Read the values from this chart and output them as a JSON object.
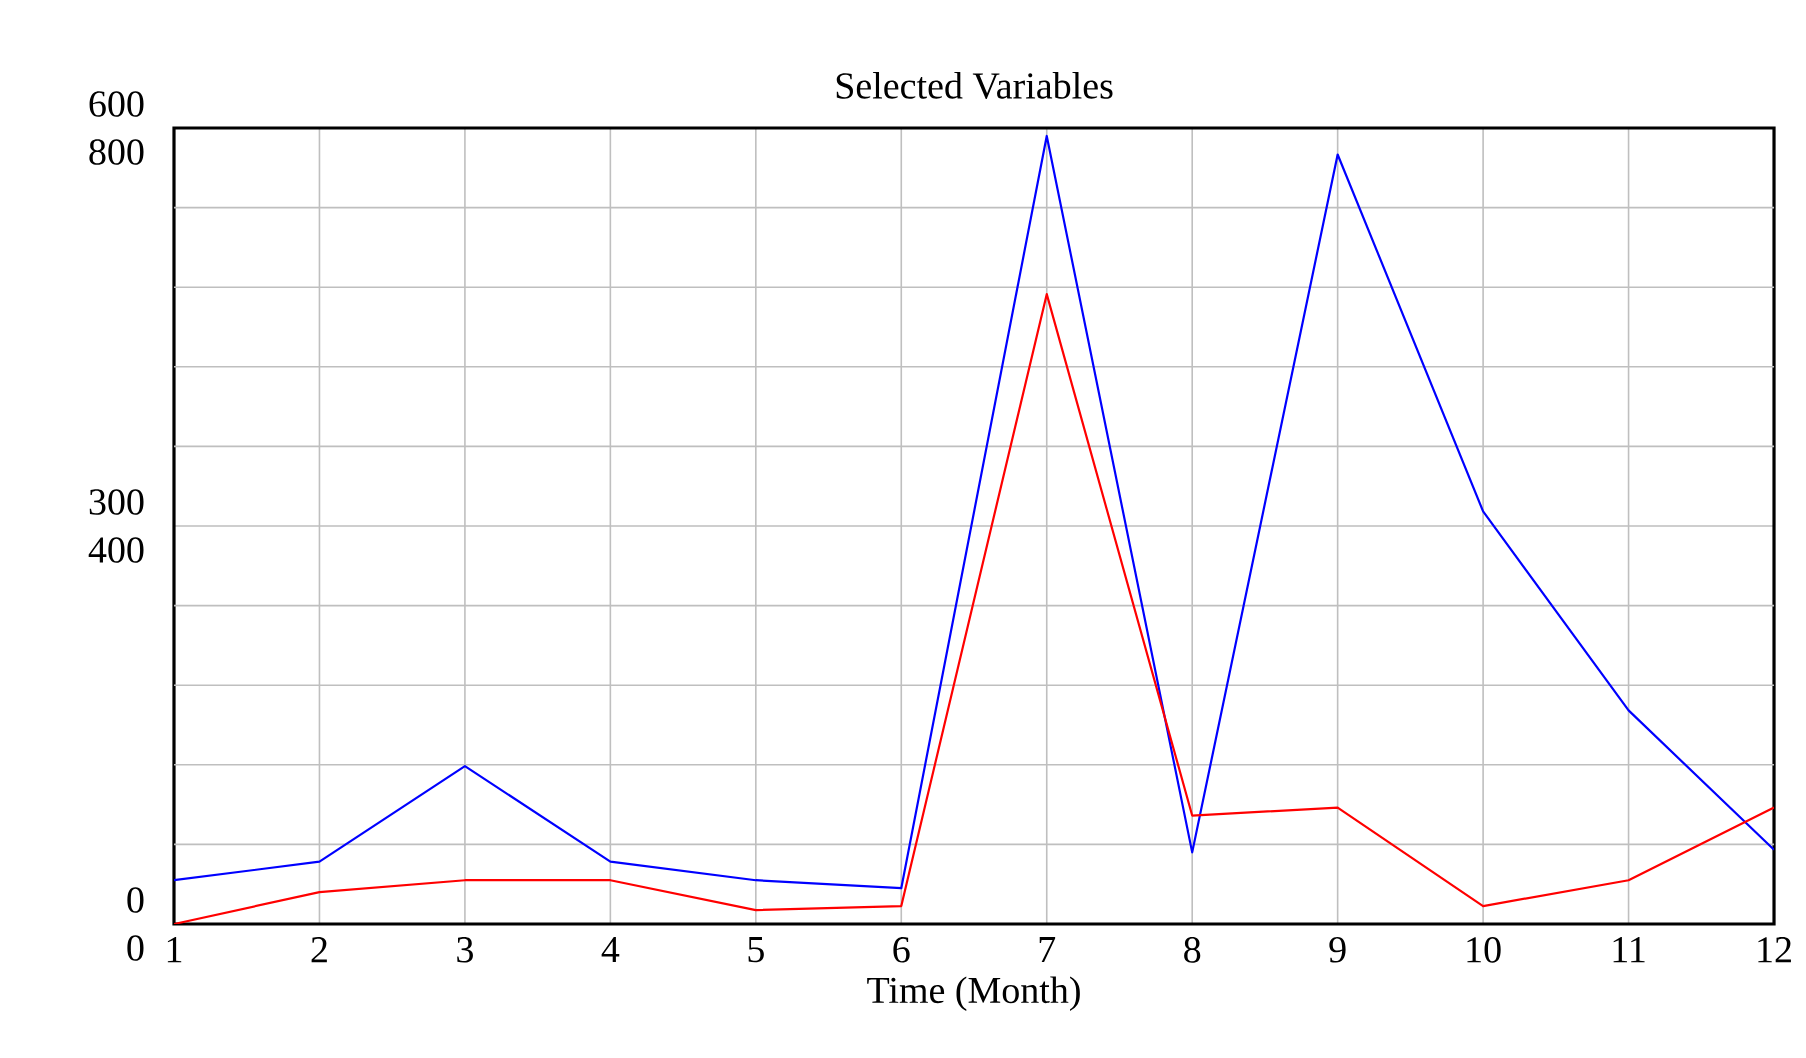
{
  "chart_data": {
    "type": "line",
    "title": "Selected Variables",
    "xlabel": "Time (Month)",
    "x": [
      1,
      2,
      3,
      4,
      5,
      6,
      7,
      8,
      9,
      10,
      11,
      12
    ],
    "xlim": [
      1,
      12
    ],
    "xticks": [
      1,
      2,
      3,
      4,
      5,
      6,
      7,
      8,
      9,
      10,
      11,
      12
    ],
    "ylim": [
      0,
      600
    ],
    "yticks": [
      0,
      {
        "value": 60,
        "label": null
      },
      {
        "value": 120,
        "label": null
      },
      {
        "value": 180,
        "label": null
      },
      {
        "value": 240,
        "label": null
      },
      300,
      {
        "value": 360,
        "label": null
      },
      {
        "value": 420,
        "label": null
      },
      {
        "value": 480,
        "label": null
      },
      {
        "value": 540,
        "label": null
      },
      600
    ],
    "y2lim": [
      0,
      800
    ],
    "y2ticks": [
      0,
      400,
      800
    ],
    "grid": true,
    "series": [
      {
        "color": "#0000ff",
        "values": [
          33,
          47,
          119,
          47,
          33,
          27,
          594,
          54,
          580,
          311,
          161,
          56
        ]
      },
      {
        "color": "#ff0000",
        "axis": "y2",
        "values": [
          0,
          32,
          44,
          44,
          14,
          18,
          633,
          109,
          117,
          18,
          44,
          117
        ]
      }
    ]
  }
}
